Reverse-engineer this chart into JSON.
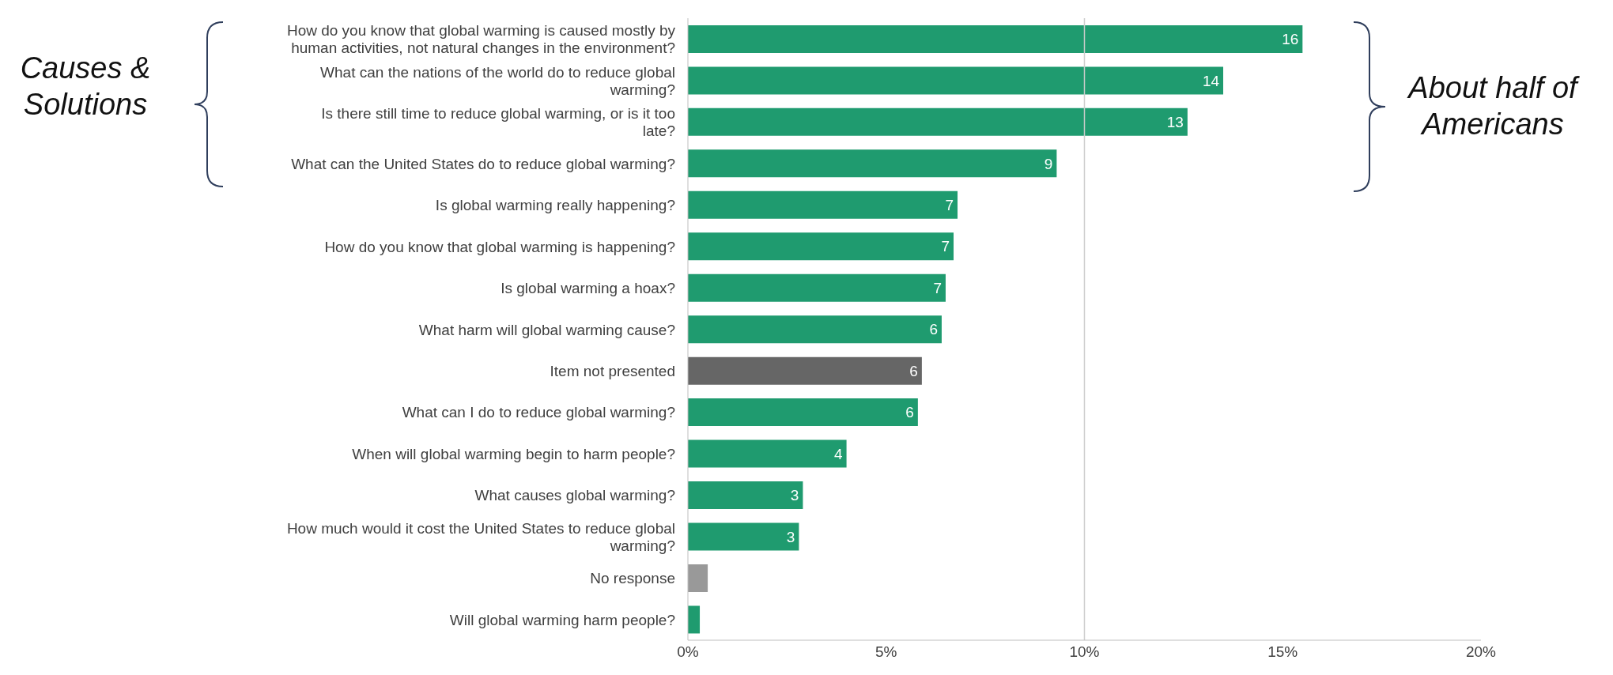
{
  "chart_data": {
    "type": "bar",
    "orientation": "horizontal",
    "categories": [
      "How do you know that global warming is caused mostly by human activities, not natural changes in the environment?",
      "What can the nations of the world do to reduce global warming?",
      "Is there still time to reduce global warming, or is it too late?",
      "What can the United States do to reduce global warming?",
      "Is global warming really happening?",
      "How do you know that global warming is happening?",
      "Is global warming a hoax?",
      "What harm will global warming cause?",
      "Item not presented",
      "What can I do to reduce global warming?",
      "When will global warming begin to harm people?",
      "What causes global warming?",
      "How much would it cost the United States to reduce global warming?",
      "No response",
      "Will global warming harm people?"
    ],
    "values": [
      15.5,
      13.5,
      12.6,
      9.3,
      6.8,
      6.7,
      6.5,
      6.4,
      5.9,
      5.8,
      4.0,
      2.9,
      2.8,
      0.5,
      0.3
    ],
    "colors": [
      "#1f9b6f",
      "#1f9b6f",
      "#1f9b6f",
      "#1f9b6f",
      "#1f9b6f",
      "#1f9b6f",
      "#1f9b6f",
      "#1f9b6f",
      "#666666",
      "#1f9b6f",
      "#1f9b6f",
      "#1f9b6f",
      "#1f9b6f",
      "#999999",
      "#1f9b6f"
    ],
    "value_labels": [
      "16",
      "14",
      "13",
      "9",
      "7",
      "7",
      "7",
      "6",
      "6",
      "6",
      "4",
      "3",
      "3",
      null,
      null
    ],
    "xlim": [
      0,
      20
    ],
    "xticks": [
      {
        "value": 0,
        "label": "0%"
      },
      {
        "value": 5,
        "label": "5%"
      },
      {
        "value": 10,
        "label": "10%"
      },
      {
        "value": 15,
        "label": "15%"
      },
      {
        "value": 20,
        "label": "20%"
      }
    ],
    "ref_lines": [
      {
        "axis": "x",
        "value": 10,
        "color": "#cccccc"
      }
    ],
    "annotations": [
      "Causes & Solutions",
      "About half of Americans"
    ],
    "grid": false,
    "legend": false
  }
}
